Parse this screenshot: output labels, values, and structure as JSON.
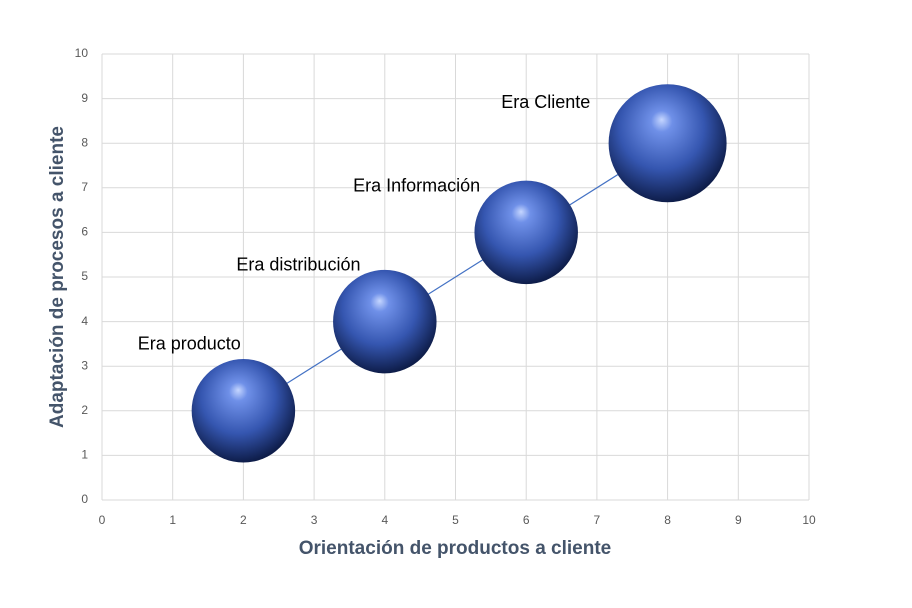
{
  "chart_data": {
    "type": "bubble",
    "x_label": "Orientación de productos a cliente",
    "y_label": "Adaptación de procesos a cliente",
    "series": [
      {
        "color": "#3a5cb8",
        "x": [
          2,
          4,
          6,
          8
        ],
        "values": [
          2,
          4,
          6,
          8
        ],
        "sizes": [
          10,
          10,
          10,
          13
        ],
        "labels": [
          "Era producto",
          "Era distribución",
          "Era Información",
          "Era Cliente"
        ]
      }
    ],
    "trendline": true,
    "xlim": [
      0,
      10
    ],
    "xticks": [
      0,
      1,
      2,
      3,
      4,
      5,
      6,
      7,
      8,
      9,
      10
    ],
    "ylim": [
      0,
      10
    ],
    "yticks": [
      0,
      1,
      2,
      3,
      4,
      5,
      6,
      7,
      8,
      9,
      10
    ],
    "grid": true
  }
}
